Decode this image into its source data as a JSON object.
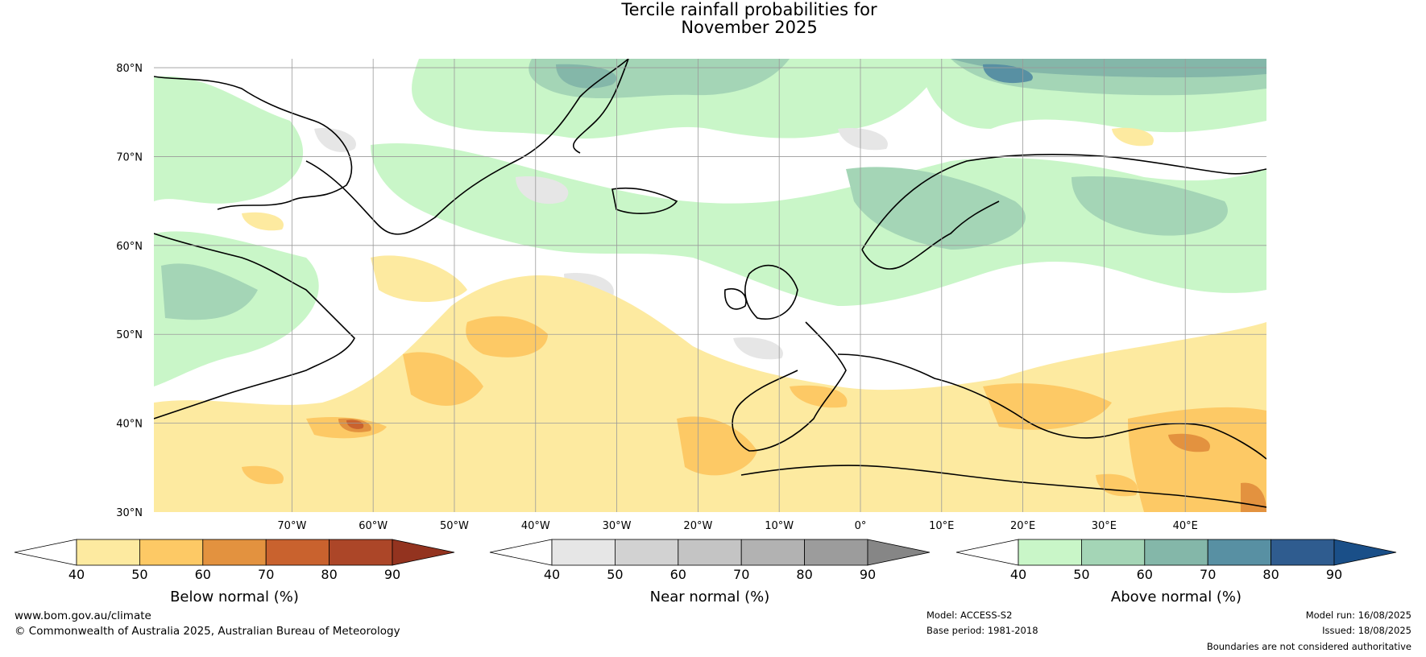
{
  "title": {
    "line1": "Tercile rainfall probabilities for",
    "line2": "November 2025"
  },
  "map": {
    "lon_range": [
      -87,
      50
    ],
    "lat_range": [
      30,
      81
    ],
    "lat_labels": [
      {
        "value": 80,
        "text": "80°N"
      },
      {
        "value": 70,
        "text": "70°N"
      },
      {
        "value": 60,
        "text": "60°N"
      },
      {
        "value": 50,
        "text": "50°N"
      },
      {
        "value": 40,
        "text": "40°N"
      },
      {
        "value": 30,
        "text": "30°N"
      }
    ],
    "lon_labels": [
      {
        "value": -70,
        "text": "70°W"
      },
      {
        "value": -60,
        "text": "60°W"
      },
      {
        "value": -50,
        "text": "50°W"
      },
      {
        "value": -40,
        "text": "40°W"
      },
      {
        "value": -30,
        "text": "30°W"
      },
      {
        "value": -20,
        "text": "20°W"
      },
      {
        "value": -10,
        "text": "10°W"
      },
      {
        "value": 0,
        "text": "0°"
      },
      {
        "value": 10,
        "text": "10°E"
      },
      {
        "value": 20,
        "text": "20°E"
      },
      {
        "value": 30,
        "text": "30°E"
      },
      {
        "value": 40,
        "text": "40°E"
      }
    ],
    "grid_lons": [
      -70,
      -60,
      -50,
      -40,
      -30,
      -20,
      -10,
      0,
      10,
      20,
      30,
      40
    ],
    "grid_lats": [
      80,
      70,
      60,
      50,
      40
    ]
  },
  "colorbars": [
    {
      "name": "below",
      "title": "Below normal (%)",
      "ticks": [
        "40",
        "50",
        "60",
        "70",
        "80",
        "90"
      ],
      "under_color": "#ffffff",
      "colors": [
        "#fdeaa0",
        "#fdc965",
        "#e3923f",
        "#c9622e",
        "#ac4628"
      ],
      "over_color": "#93331f"
    },
    {
      "name": "near",
      "title": "Near normal (%)",
      "ticks": [
        "40",
        "50",
        "60",
        "70",
        "80",
        "90"
      ],
      "under_color": "#ffffff",
      "colors": [
        "#e6e6e6",
        "#d2d2d2",
        "#c4c4c4",
        "#b2b2b2",
        "#9c9c9c"
      ],
      "over_color": "#868686"
    },
    {
      "name": "above",
      "title": "Above normal (%)",
      "ticks": [
        "40",
        "50",
        "60",
        "70",
        "80",
        "90"
      ],
      "under_color": "#ffffff",
      "colors": [
        "#c9f6c8",
        "#a4d5b6",
        "#84b7a9",
        "#5890a3",
        "#2f5c8f"
      ],
      "over_color": "#1a4f88"
    }
  ],
  "footer": {
    "url": "www.bom.gov.au/climate",
    "copyright": "© Commonwealth of Australia 2025, Australian Bureau of Meteorology",
    "model": "Model: ACCESS-S2",
    "base_period": "Base period: 1981-2018",
    "model_run": "Model run: 16/08/2025",
    "issued": "Issued: 18/08/2025",
    "disclaimer": "Boundaries are not considered authoritative"
  }
}
